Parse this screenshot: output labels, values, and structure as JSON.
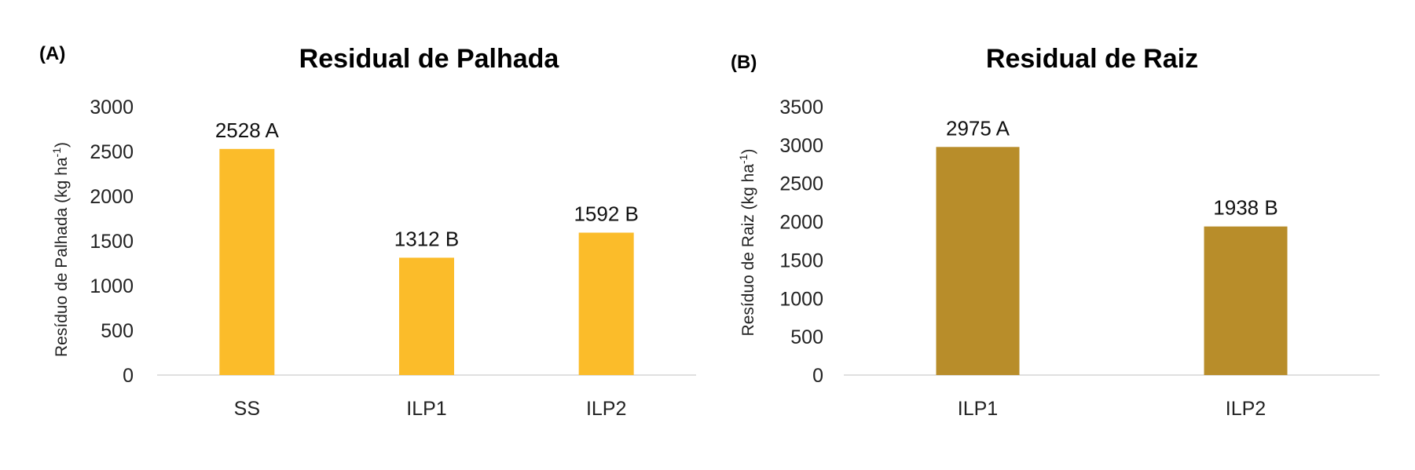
{
  "chart_data": [
    {
      "panel": "(A)",
      "type": "bar",
      "title": "Residual de Palhada",
      "ylabel": "Resíduo de Palhada (kg ha",
      "ylabel_sup": "-1",
      "ylabel_close": ")",
      "categories": [
        "SS",
        "ILP1",
        "ILP2"
      ],
      "values": [
        2528,
        1312,
        1592
      ],
      "data_labels": [
        "2528 A",
        "1312 B",
        "1592 B"
      ],
      "ylim": [
        0,
        3000
      ],
      "yticks": [
        0,
        500,
        1000,
        1500,
        2000,
        2500,
        3000
      ],
      "grid": false,
      "color": "#FBBC2A"
    },
    {
      "panel": "(B)",
      "type": "bar",
      "title": "Residual de Raiz",
      "ylabel": "Resíduo de Raiz (kg ha",
      "ylabel_sup": "-1",
      "ylabel_close": ")",
      "categories": [
        "ILP1",
        "ILP2"
      ],
      "values": [
        2975,
        1938
      ],
      "data_labels": [
        "2975 A",
        "1938 B"
      ],
      "ylim": [
        0,
        3500
      ],
      "yticks": [
        0,
        500,
        1000,
        1500,
        2000,
        2500,
        3000,
        3500
      ],
      "grid": false,
      "color": "#B88D2A"
    }
  ]
}
